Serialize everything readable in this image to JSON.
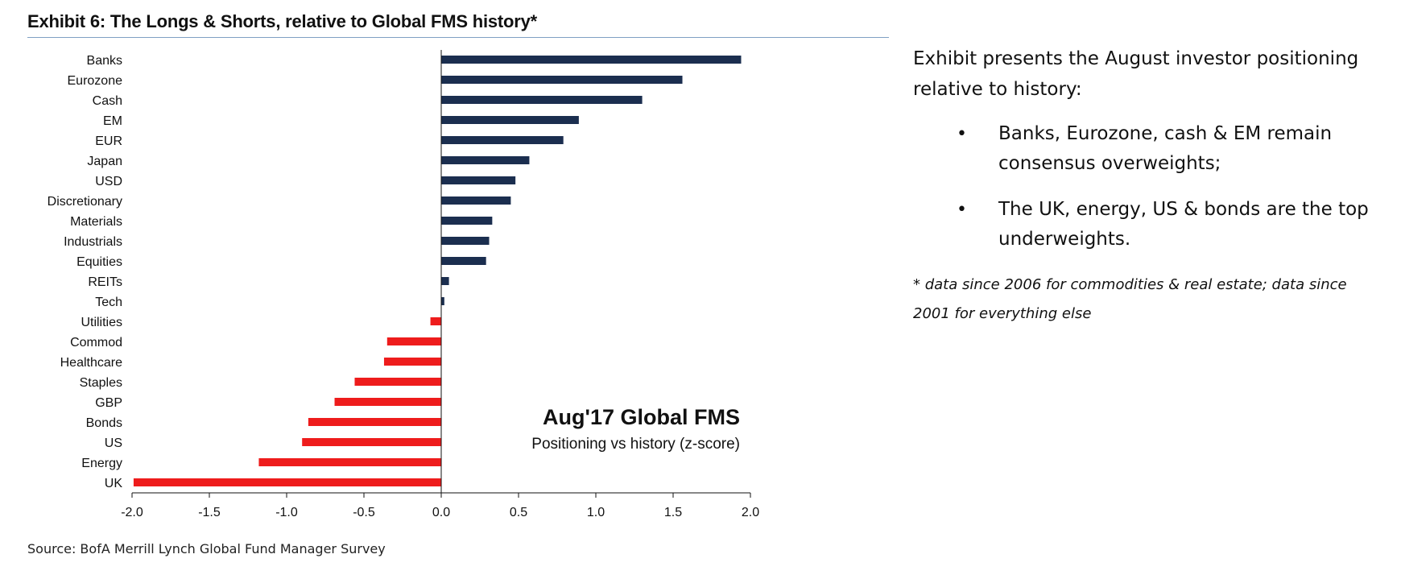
{
  "exhibit": {
    "title": "Exhibit 6: The Longs & Shorts, relative to Global FMS history*",
    "source": "Source: BofA Merrill Lynch Global Fund Manager Survey"
  },
  "chart_data": {
    "type": "bar",
    "orientation": "horizontal",
    "title": "Aug'17 Global FMS",
    "subtitle": "Positioning vs history (z-score)",
    "categories": [
      "Banks",
      "Eurozone",
      "Cash",
      "EM",
      "EUR",
      "Japan",
      "USD",
      "Discretionary",
      "Materials",
      "Industrials",
      "Equities",
      "REITs",
      "Tech",
      "Utilities",
      "Commod",
      "Healthcare",
      "Staples",
      "GBP",
      "Bonds",
      "US",
      "Energy",
      "UK"
    ],
    "values": [
      1.94,
      1.56,
      1.3,
      0.89,
      0.79,
      0.57,
      0.48,
      0.45,
      0.33,
      0.31,
      0.29,
      0.05,
      0.02,
      -0.07,
      -0.35,
      -0.37,
      -0.56,
      -0.69,
      -0.86,
      -0.9,
      -1.18,
      -1.99
    ],
    "xlim": [
      -2.0,
      2.0
    ],
    "xticks": [
      "-2.0",
      "-1.5",
      "-1.0",
      "-0.5",
      "0.0",
      "0.5",
      "1.0",
      "1.5",
      "2.0"
    ],
    "colors": {
      "positive": "#1b2e4f",
      "negative": "#ee1c1c"
    }
  },
  "side_text": {
    "intro": "Exhibit presents the August investor positioning relative to history:",
    "bullets": [
      "Banks, Eurozone, cash & EM remain consensus overweights;",
      "The UK, energy, US & bonds are the top underweights."
    ],
    "bullet_glyph": "•",
    "note": "* data since 2006 for commodities & real estate; data since 2001 for everything else"
  }
}
